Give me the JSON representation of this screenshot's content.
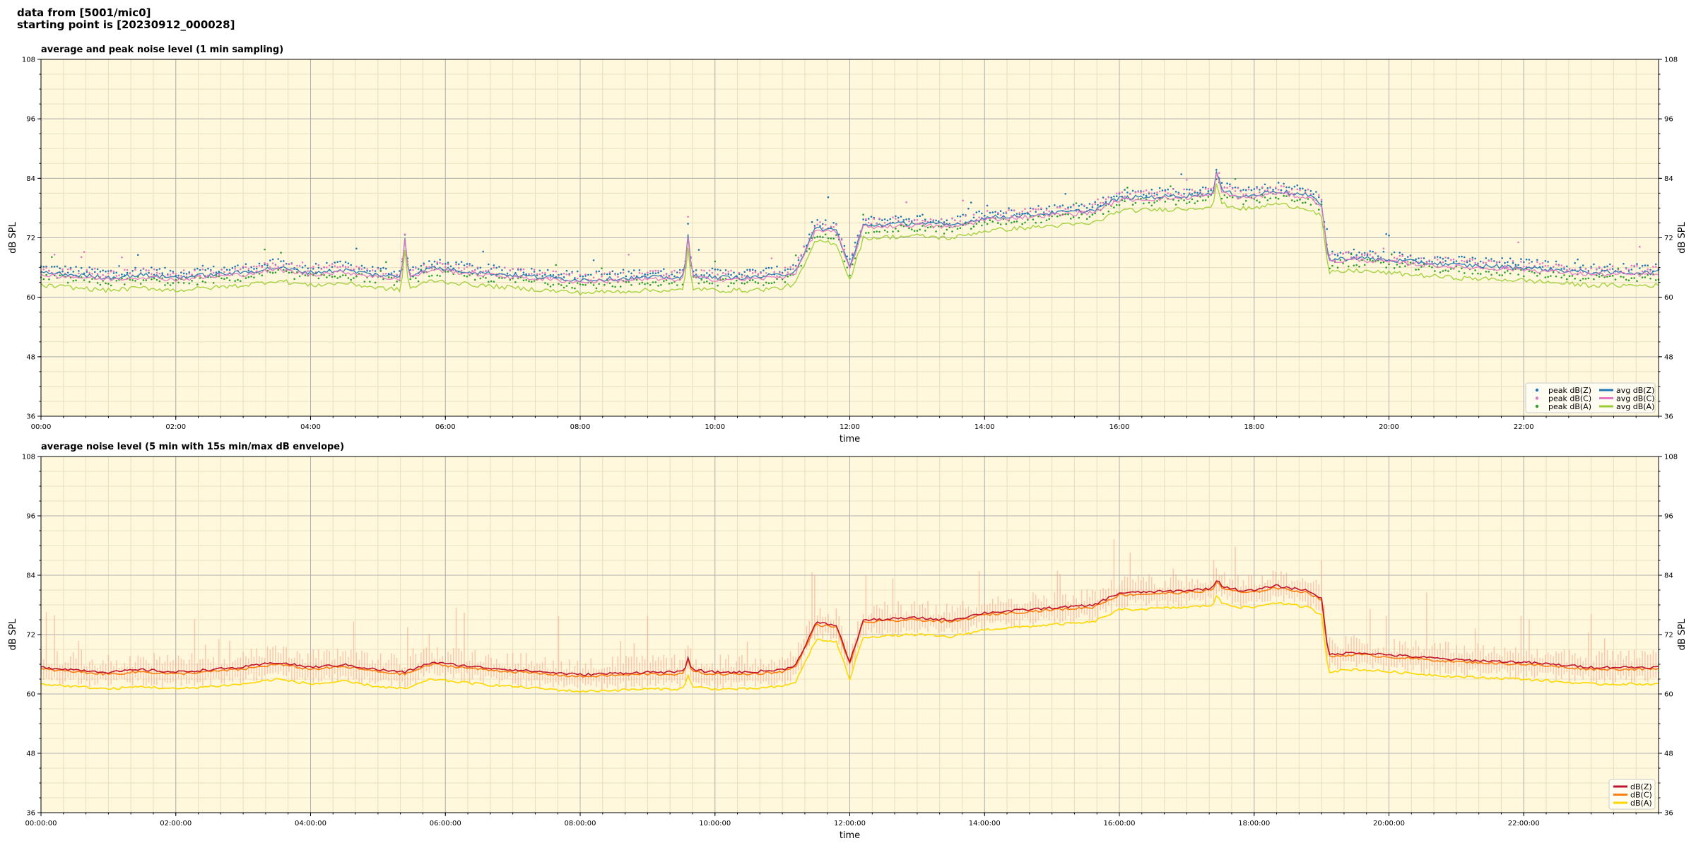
{
  "header": {
    "line1": "data from [5001/mic0]",
    "line2": "starting point is [20230912_000028]"
  },
  "colors": {
    "plot_bg": "#fff8dc",
    "grid_major": "#b0b0b0",
    "grid_minor": "#e8dfc0"
  },
  "chart_data": [
    {
      "type": "scatter",
      "title": "average and peak noise level (1 min sampling)",
      "xlabel": "time",
      "ylabel": "dB SPL",
      "xlim": [
        0,
        24
      ],
      "ylim": [
        36,
        108
      ],
      "yticks": [
        36,
        48,
        60,
        72,
        84,
        96,
        108
      ],
      "xticks": [
        0,
        2,
        4,
        6,
        8,
        10,
        12,
        14,
        16,
        18,
        20,
        22
      ],
      "xtick_labels": [
        "00:00",
        "02:00",
        "04:00",
        "06:00",
        "08:00",
        "10:00",
        "12:00",
        "14:00",
        "16:00",
        "18:00",
        "20:00",
        "22:00"
      ],
      "grid": true,
      "legend_position": "bottom-right",
      "series": [
        {
          "name": "peak dB(Z)",
          "kind": "points",
          "color": "#1f77b4",
          "offset": 1.0
        },
        {
          "name": "peak dB(C)",
          "kind": "points",
          "color": "#e377c2",
          "offset": 0.6
        },
        {
          "name": "peak dB(A)",
          "kind": "points",
          "color": "#2ca02c",
          "offset": -1.0
        },
        {
          "name": "avg dB(Z)",
          "kind": "line",
          "color": "#1f77b4",
          "offset": 0.0
        },
        {
          "name": "avg dB(C)",
          "kind": "line",
          "color": "#e377c2",
          "offset": -0.4
        },
        {
          "name": "avg dB(A)",
          "kind": "line",
          "color": "#9acd32",
          "offset": -2.6
        }
      ],
      "profile": {
        "hour": [
          0,
          0.5,
          1,
          1.5,
          2,
          2.5,
          3,
          3.5,
          4,
          4.5,
          5,
          5.4,
          5.8,
          6.5,
          7,
          8,
          9,
          9.5,
          9.6,
          10,
          10.5,
          11,
          11.2,
          11.5,
          11.8,
          12.0,
          12.2,
          13,
          13.5,
          14,
          15,
          15.6,
          16,
          17,
          17.4,
          17.5,
          17.8,
          18,
          18.3,
          18.8,
          19.0,
          19.1,
          19.5,
          20,
          21,
          22,
          23,
          24
        ],
        "level": [
          65.0,
          64.5,
          64.0,
          64.5,
          64.0,
          64.5,
          65.0,
          66.0,
          65.0,
          65.5,
          64.5,
          64.0,
          66.0,
          65.0,
          64.5,
          63.5,
          64.0,
          64.0,
          64.5,
          64.0,
          64.0,
          64.5,
          65.5,
          74.0,
          73.5,
          66.0,
          74.5,
          75.0,
          74.5,
          76.0,
          77.0,
          77.5,
          80.0,
          80.5,
          81.0,
          81.5,
          80.5,
          80.5,
          81.5,
          80.5,
          79.0,
          67.5,
          68.0,
          67.5,
          66.5,
          66.0,
          65.0,
          65.0
        ]
      },
      "spikes": [
        {
          "hour": 5.4,
          "level": 72
        },
        {
          "hour": 9.6,
          "level": 72.5
        },
        {
          "hour": 17.45,
          "level": 86
        }
      ]
    },
    {
      "type": "line",
      "title": "average noise level (5 min with 15s min/max dB envelope)",
      "xlabel": "time",
      "ylabel": "dB SPL",
      "xlim": [
        0,
        24
      ],
      "ylim": [
        36,
        108
      ],
      "yticks": [
        36,
        48,
        60,
        72,
        84,
        96,
        108
      ],
      "xticks": [
        0,
        2,
        4,
        6,
        8,
        10,
        12,
        14,
        16,
        18,
        20,
        22
      ],
      "xtick_labels": [
        "00:00:00",
        "02:00:00",
        "04:00:00",
        "06:00:00",
        "08:00:00",
        "10:00:00",
        "12:00:00",
        "14:00:00",
        "16:00:00",
        "18:00:00",
        "20:00:00",
        "22:00:00"
      ],
      "grid": true,
      "legend_position": "bottom-right",
      "series": [
        {
          "name": "dB(Z)",
          "color": "#c0142c",
          "offset": 0.4
        },
        {
          "name": "dB(C)",
          "color": "#ff7f0e",
          "offset": 0.0
        },
        {
          "name": "dB(A)",
          "color": "#ffd700",
          "offset": -3.0
        }
      ],
      "envelope_color": "#f4a38a",
      "profile": {
        "hour": [
          0,
          0.5,
          1,
          1.5,
          2,
          2.5,
          3,
          3.5,
          4,
          4.5,
          5,
          5.4,
          5.8,
          6.5,
          7,
          8,
          9,
          9.5,
          9.6,
          10,
          10.5,
          11,
          11.2,
          11.5,
          11.8,
          12.0,
          12.2,
          13,
          13.5,
          14,
          15,
          15.6,
          16,
          17,
          17.4,
          17.5,
          17.8,
          18,
          18.3,
          18.8,
          19.0,
          19.1,
          19.5,
          20,
          21,
          22,
          23,
          24
        ],
        "level": [
          65.0,
          64.5,
          64.0,
          64.5,
          64.0,
          64.5,
          65.0,
          66.0,
          65.0,
          65.5,
          64.5,
          64.0,
          66.0,
          65.0,
          64.5,
          63.5,
          64.0,
          64.0,
          64.5,
          64.0,
          64.0,
          64.5,
          65.5,
          74.0,
          73.5,
          66.0,
          74.5,
          75.0,
          74.5,
          76.0,
          77.0,
          77.5,
          80.0,
          80.5,
          81.0,
          81.5,
          80.5,
          80.5,
          81.5,
          80.5,
          79.0,
          67.5,
          68.0,
          67.5,
          66.5,
          66.0,
          65.0,
          65.0
        ]
      },
      "spikes": [
        {
          "hour": 9.6,
          "level": 67
        },
        {
          "hour": 17.45,
          "level": 83
        }
      ]
    }
  ]
}
